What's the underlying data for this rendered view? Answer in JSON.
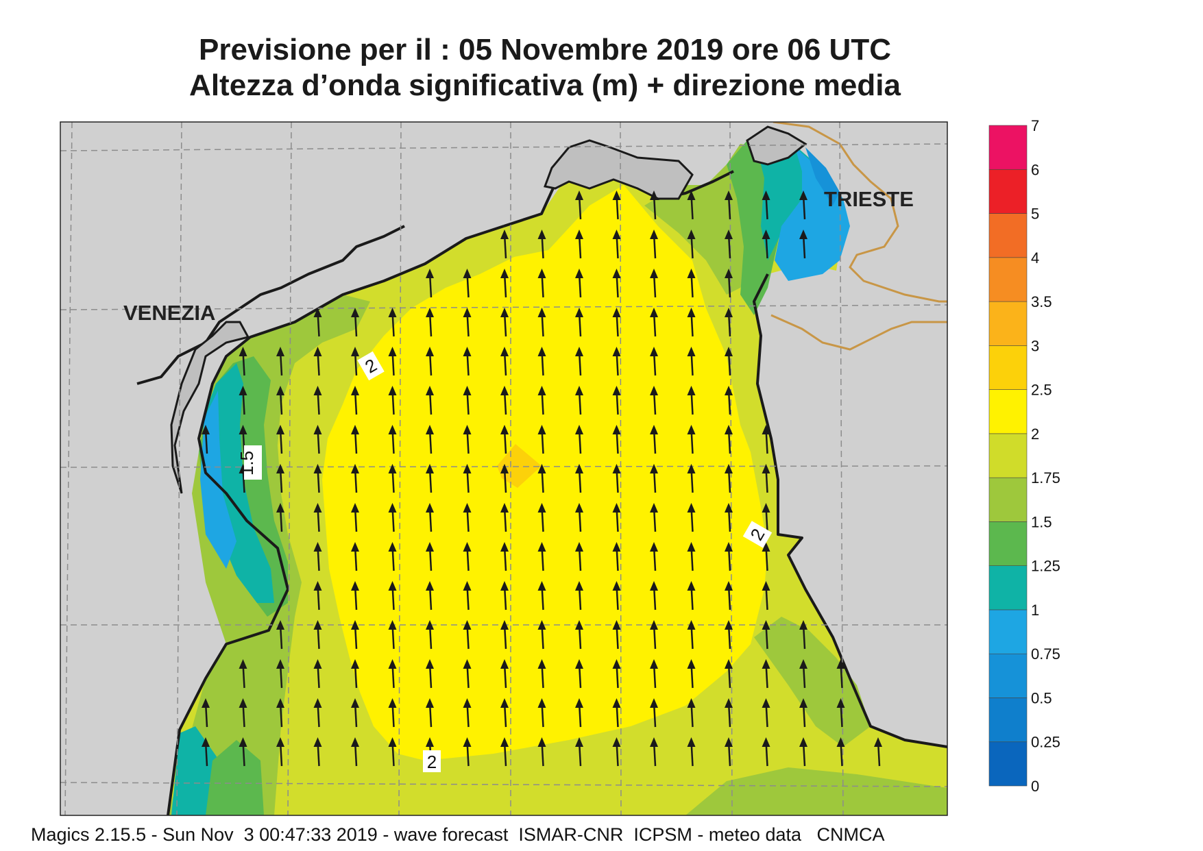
{
  "header": {
    "title_line1": "Previsione per il  :  05 Novembre  2019   ore 06 UTC",
    "title_line2": "Altezza d’onda significativa (m) + direzione media"
  },
  "map": {
    "cities": [
      "VENEZIA",
      "TRIESTE"
    ],
    "contour_labels": [
      "2",
      "1.5",
      "2",
      "2"
    ],
    "arrow_direction": "north",
    "land_color": "#d0d0d0",
    "coast_color": "#1a1a1a",
    "border_color": "#c89646"
  },
  "colorbar": {
    "labels": [
      "0",
      "0.25",
      "0.5",
      "0.75",
      "1",
      "1.25",
      "1.5",
      "1.75",
      "2",
      "2.5",
      "3",
      "3.5",
      "4",
      "5",
      "6",
      "7"
    ],
    "colors": [
      "#0a66bd",
      "#0f7fcc",
      "#1692d8",
      "#1ea6e3",
      "#0fb3a6",
      "#5cb84e",
      "#9ec83c",
      "#d0dc2a",
      "#fff200",
      "#fcd10a",
      "#fbb31a",
      "#f68d22",
      "#f26d25",
      "#ec2027",
      "#ec1263"
    ]
  },
  "footer": {
    "text": "Magics 2.15.5 - Sun Nov  3 00:47:33 2019 - wave forecast  ISMAR-CNR  ICPSM - meteo data   CNMCA"
  }
}
